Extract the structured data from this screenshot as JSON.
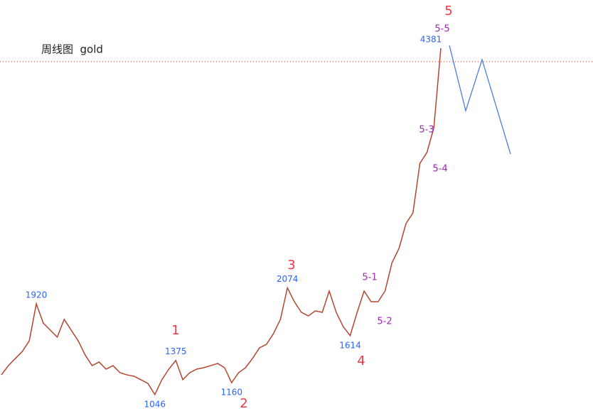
{
  "chart_data": {
    "type": "line",
    "title": "周线图  gold",
    "ylim": [
      840,
      4845
    ],
    "series": [
      {
        "name": "gold",
        "color": "#b5452f",
        "values": [
          1236,
          1325,
          1394,
          1462,
          1565,
          1920,
          1735,
          1667,
          1599,
          1770,
          1667,
          1565,
          1428,
          1325,
          1360,
          1291,
          1325,
          1257,
          1236,
          1223,
          1189,
          1154,
          1046,
          1189,
          1291,
          1375,
          1189,
          1257,
          1291,
          1305,
          1325,
          1346,
          1305,
          1160,
          1257,
          1305,
          1394,
          1496,
          1530,
          1633,
          1770,
          2074,
          1940,
          1838,
          1804,
          1852,
          1838,
          2043,
          1838,
          1701,
          1614,
          1838,
          2043,
          1940,
          1940,
          2043,
          2316,
          2453,
          2692,
          2795,
          3273,
          3376,
          3615,
          4381
        ]
      },
      {
        "name": "projection",
        "color": "#4a7fe0",
        "values": [
          4408,
          3779,
          4271,
          3362
        ]
      }
    ],
    "reference_line": 4251,
    "price_labels": [
      1920,
      1375,
      1046,
      1160,
      2074,
      1614,
      4381
    ],
    "waves": [
      "1",
      "2",
      "3",
      "4",
      "5"
    ],
    "sub_waves": [
      "5-1",
      "5-2",
      "5-3",
      "5-4",
      "5-5"
    ]
  }
}
